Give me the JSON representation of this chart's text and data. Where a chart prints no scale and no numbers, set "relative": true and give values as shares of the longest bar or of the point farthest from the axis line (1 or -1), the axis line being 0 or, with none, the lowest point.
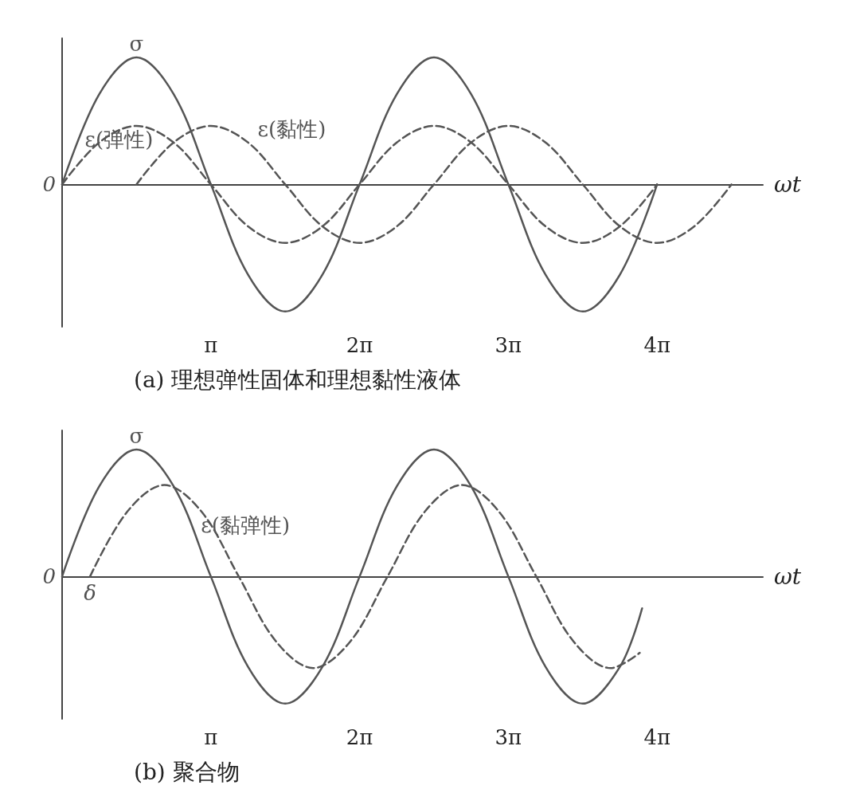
{
  "chart_data": [
    {
      "type": "line",
      "xlabel": "ωt",
      "relative": true,
      "marker": "none",
      "grid": false,
      "legend": false,
      "xlim": [
        0,
        14.8
      ],
      "xticks": [
        {
          "value": 3.1416,
          "label": "π"
        },
        {
          "value": 6.2832,
          "label": "2π"
        },
        {
          "value": 9.4248,
          "label": "3π"
        },
        {
          "value": 12.5664,
          "label": "4π"
        }
      ],
      "annotations": [
        "0",
        "(a) 理想弹性固体和理想黏性液体"
      ],
      "series": [
        {
          "name": "σ",
          "color": "#555555",
          "line_style": "solid",
          "x": [
            0,
            0.785,
            1.571,
            2.356,
            3.142,
            3.927,
            4.712,
            5.498,
            6.283,
            7.069,
            7.854,
            8.639,
            9.425,
            10.21,
            10.996,
            11.781,
            12.566
          ],
          "values": [
            0,
            0.71,
            1,
            0.71,
            0,
            -0.71,
            -1,
            -0.71,
            0,
            0.71,
            1,
            0.71,
            0,
            -0.71,
            -1,
            -0.71,
            0
          ]
        },
        {
          "name": "ε(弹性)",
          "color": "#555555",
          "line_style": "dashed",
          "x": [
            0,
            0.785,
            1.571,
            2.356,
            3.142,
            3.927,
            4.712,
            5.498,
            6.283,
            7.069,
            7.854,
            8.639,
            9.425,
            10.21,
            10.996,
            11.781,
            12.566
          ],
          "values": [
            0,
            0.33,
            0.46,
            0.33,
            0,
            -0.33,
            -0.46,
            -0.33,
            0,
            0.33,
            0.46,
            0.33,
            0,
            -0.33,
            -0.46,
            -0.33,
            0
          ]
        },
        {
          "name": "ε(黏性)",
          "color": "#555555",
          "line_style": "dashed",
          "x": [
            1.571,
            2.356,
            3.142,
            3.927,
            4.712,
            5.498,
            6.283,
            7.069,
            7.854,
            8.639,
            9.425,
            10.21,
            10.996,
            11.781,
            12.566,
            13.352,
            14.137
          ],
          "values": [
            0,
            0.33,
            0.46,
            0.33,
            0,
            -0.33,
            -0.46,
            -0.33,
            0,
            0.33,
            0.46,
            0.33,
            0,
            -0.33,
            -0.46,
            -0.33,
            0
          ]
        }
      ]
    },
    {
      "type": "line",
      "xlabel": "ωt",
      "relative": true,
      "marker": "none",
      "grid": false,
      "legend": false,
      "xlim": [
        0,
        14.8
      ],
      "xticks": [
        {
          "value": 3.1416,
          "label": "π"
        },
        {
          "value": 6.2832,
          "label": "2π"
        },
        {
          "value": 9.4248,
          "label": "3π"
        },
        {
          "value": 12.5664,
          "label": "4π"
        }
      ],
      "annotations": [
        "0",
        {
          "text": "δ",
          "x": 0.59,
          "y": 0
        },
        "(b) 聚合物"
      ],
      "series": [
        {
          "name": "σ",
          "color": "#555555",
          "line_style": "solid",
          "x": [
            0,
            0.785,
            1.571,
            2.356,
            3.142,
            3.927,
            4.712,
            5.498,
            6.283,
            7.069,
            7.854,
            8.639,
            9.425,
            10.21,
            10.996,
            11.781,
            12.25
          ],
          "values": [
            0,
            0.71,
            1,
            0.71,
            0,
            -0.71,
            -1,
            -0.71,
            0,
            0.71,
            1,
            0.71,
            0,
            -0.71,
            -1,
            -0.71,
            -0.25
          ]
        },
        {
          "name": "ε(黏弹性)",
          "color": "#555555",
          "line_style": "dashed",
          "x": [
            0.59,
            1.375,
            2.161,
            2.946,
            3.732,
            4.517,
            5.302,
            6.088,
            6.873,
            7.659,
            8.444,
            9.229,
            10.015,
            10.8,
            11.586,
            12.2
          ],
          "values": [
            0,
            0.51,
            0.72,
            0.51,
            0,
            -0.51,
            -0.72,
            -0.51,
            0,
            0.51,
            0.72,
            0.51,
            0,
            -0.51,
            -0.72,
            -0.6
          ]
        }
      ]
    }
  ]
}
